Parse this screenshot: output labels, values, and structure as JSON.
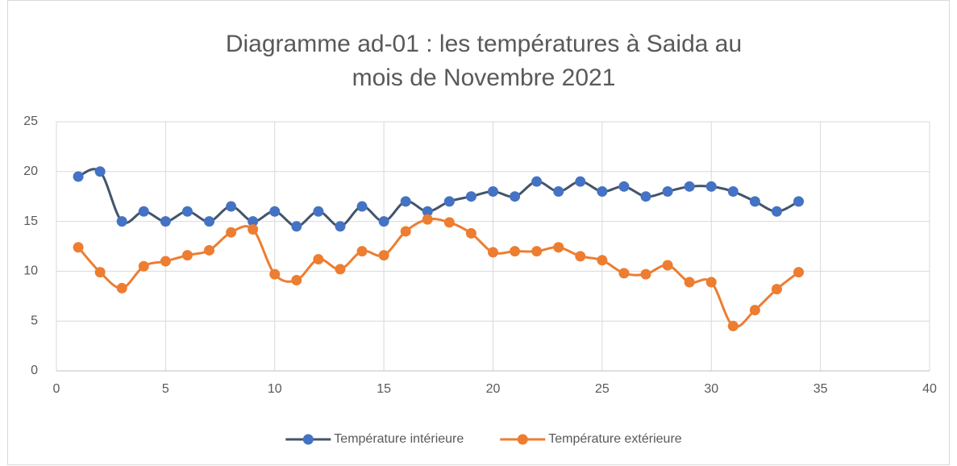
{
  "chart_data": {
    "type": "line",
    "title": "Diagramme ad-01 : les températures à Saida au mois de Novembre 2021",
    "x": [
      1,
      2,
      3,
      4,
      5,
      6,
      7,
      8,
      9,
      10,
      11,
      12,
      13,
      14,
      15,
      16,
      17,
      18,
      19,
      20,
      21,
      22,
      23,
      24,
      25,
      26,
      27,
      28,
      29,
      30,
      31,
      32,
      33,
      34
    ],
    "series": [
      {
        "name": "Température intérieure",
        "color": "#4472c4",
        "line_color": "#44546a",
        "values": [
          19.5,
          20,
          15,
          16,
          15,
          16,
          15,
          16.5,
          15,
          16,
          14.5,
          16,
          14.5,
          16.5,
          15,
          17,
          16,
          17,
          17.5,
          18,
          17.5,
          19,
          18,
          19,
          18,
          18.5,
          17.5,
          18,
          18.5,
          18.5,
          18,
          17,
          16,
          17
        ]
      },
      {
        "name": "Température extérieure",
        "color": "#ed7d31",
        "line_color": "#ed7d31",
        "values": [
          12.4,
          9.9,
          8.3,
          10.5,
          11,
          11.6,
          12.1,
          13.9,
          14.2,
          9.7,
          9.1,
          11.2,
          10.2,
          12,
          11.6,
          14,
          15.2,
          14.9,
          13.8,
          11.9,
          12,
          12,
          12.4,
          11.5,
          11.1,
          9.8,
          9.7,
          10.6,
          8.9,
          8.9,
          4.5,
          6.1,
          8.2,
          9.9
        ]
      }
    ],
    "xlim": [
      0,
      40
    ],
    "xticks": [
      0,
      5,
      10,
      15,
      20,
      25,
      30,
      35,
      40
    ],
    "ylim": [
      0,
      25
    ],
    "yticks": [
      0,
      5,
      10,
      15,
      20,
      25
    ],
    "grid": true,
    "smooth": true,
    "legend": "bottom"
  }
}
